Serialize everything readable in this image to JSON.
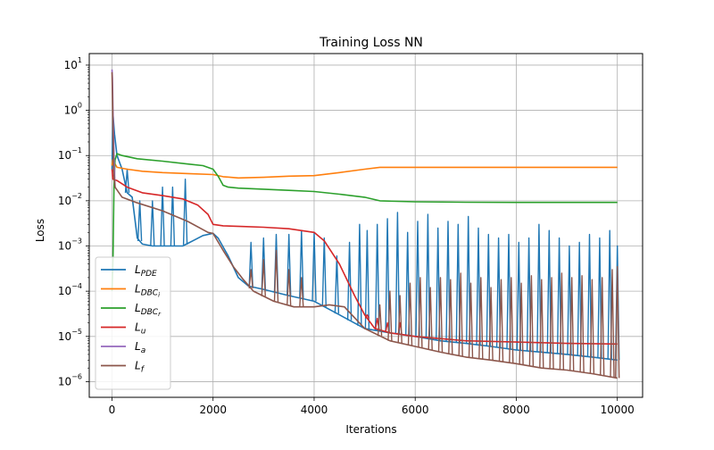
{
  "chart_data": {
    "type": "line",
    "title": "Training Loss NN",
    "xlabel": "Iterations",
    "ylabel": "Loss",
    "xlim": [
      -450,
      10500
    ],
    "ylim": [
      4.5e-07,
      18
    ],
    "yscale": "log",
    "grid": true,
    "legend_position": "lower-left",
    "x_ticks": [
      {
        "value": 0,
        "label": "0"
      },
      {
        "value": 2000,
        "label": "2000"
      },
      {
        "value": 4000,
        "label": "4000"
      },
      {
        "value": 6000,
        "label": "6000"
      },
      {
        "value": 8000,
        "label": "8000"
      },
      {
        "value": 10000,
        "label": "10000"
      }
    ],
    "y_ticks": [
      {
        "value": 1e-06,
        "base": "10",
        "exp": "−6"
      },
      {
        "value": 1e-05,
        "base": "10",
        "exp": "−5"
      },
      {
        "value": 0.0001,
        "base": "10",
        "exp": "−4"
      },
      {
        "value": 0.001,
        "base": "10",
        "exp": "−3"
      },
      {
        "value": 0.01,
        "base": "10",
        "exp": "−2"
      },
      {
        "value": 0.1,
        "base": "10",
        "exp": "−1"
      },
      {
        "value": 1,
        "base": "10",
        "exp": "0"
      },
      {
        "value": 10,
        "base": "10",
        "exp": "1"
      }
    ],
    "series": [
      {
        "name": "L_PDE",
        "main": "L",
        "sub": "PDE",
        "subsub": "",
        "color": "#1f77b4",
        "points": [
          [
            0,
            0.05
          ],
          [
            20,
            0.8
          ],
          [
            50,
            0.3
          ],
          [
            100,
            0.1
          ],
          [
            200,
            0.05
          ],
          [
            300,
            0.015
          ],
          [
            400,
            0.012
          ],
          [
            500,
            0.0015
          ],
          [
            600,
            0.0011
          ],
          [
            800,
            0.001
          ],
          [
            1000,
            0.001
          ],
          [
            1200,
            0.001
          ],
          [
            1400,
            0.001
          ],
          [
            1600,
            0.0013
          ],
          [
            1800,
            0.0017
          ],
          [
            2000,
            0.0019
          ],
          [
            2100,
            0.0015
          ],
          [
            2300,
            0.0006
          ],
          [
            2500,
            0.0002
          ],
          [
            2700,
            0.00013
          ],
          [
            3000,
            0.00011
          ],
          [
            3500,
            8e-05
          ],
          [
            4000,
            6e-05
          ],
          [
            4500,
            3e-05
          ],
          [
            5000,
            1.5e-05
          ],
          [
            5500,
            1.2e-05
          ],
          [
            6000,
            1e-05
          ],
          [
            6500,
            8e-06
          ],
          [
            7000,
            7e-06
          ],
          [
            7500,
            6e-06
          ],
          [
            8000,
            5e-06
          ],
          [
            8500,
            4.5e-06
          ],
          [
            9000,
            4e-06
          ],
          [
            9500,
            3.5e-06
          ],
          [
            10000,
            3e-06
          ]
        ],
        "spikes": [
          [
            300,
            0.05
          ],
          [
            550,
            0.01
          ],
          [
            800,
            0.01
          ],
          [
            1000,
            0.02
          ],
          [
            1200,
            0.02
          ],
          [
            1450,
            0.03
          ],
          [
            2750,
            0.0012
          ],
          [
            3000,
            0.0015
          ],
          [
            3250,
            0.0018
          ],
          [
            3500,
            0.0018
          ],
          [
            3750,
            0.0022
          ],
          [
            4000,
            0.002
          ],
          [
            4200,
            0.0015
          ],
          [
            4450,
            0.0006
          ],
          [
            4700,
            0.0012
          ],
          [
            4900,
            0.003
          ],
          [
            5050,
            0.0022
          ],
          [
            5250,
            0.003
          ],
          [
            5450,
            0.004
          ],
          [
            5650,
            0.0055
          ],
          [
            5850,
            0.002
          ],
          [
            6050,
            0.0035
          ],
          [
            6250,
            0.005
          ],
          [
            6450,
            0.0025
          ],
          [
            6650,
            0.0035
          ],
          [
            6850,
            0.003
          ],
          [
            7050,
            0.0045
          ],
          [
            7250,
            0.0025
          ],
          [
            7450,
            0.0018
          ],
          [
            7650,
            0.0015
          ],
          [
            7850,
            0.0018
          ],
          [
            8050,
            0.0012
          ],
          [
            8250,
            0.0015
          ],
          [
            8450,
            0.003
          ],
          [
            8650,
            0.0022
          ],
          [
            8850,
            0.0015
          ],
          [
            9050,
            0.001
          ],
          [
            9250,
            0.0012
          ],
          [
            9450,
            0.0018
          ],
          [
            9650,
            0.0015
          ],
          [
            9850,
            0.0022
          ],
          [
            10000,
            0.001
          ]
        ]
      },
      {
        "name": "L_DBC_i",
        "main": "L",
        "sub": "DBC",
        "subsub": "i",
        "color": "#ff7f0e",
        "points": [
          [
            0,
            0.06
          ],
          [
            15,
            0.08
          ],
          [
            100,
            0.055
          ],
          [
            300,
            0.05
          ],
          [
            600,
            0.045
          ],
          [
            1000,
            0.042
          ],
          [
            1500,
            0.04
          ],
          [
            2000,
            0.038
          ],
          [
            2200,
            0.034
          ],
          [
            2500,
            0.032
          ],
          [
            3000,
            0.033
          ],
          [
            3500,
            0.035
          ],
          [
            4000,
            0.036
          ],
          [
            4500,
            0.042
          ],
          [
            5000,
            0.05
          ],
          [
            5300,
            0.055
          ],
          [
            6000,
            0.055
          ],
          [
            7000,
            0.055
          ],
          [
            8000,
            0.055
          ],
          [
            9000,
            0.055
          ],
          [
            10000,
            0.055
          ]
        ],
        "spikes": []
      },
      {
        "name": "L_DBC_r",
        "main": "L",
        "sub": "DBC",
        "subsub": "r",
        "color": "#2ca02c",
        "points": [
          [
            0,
            0.0001
          ],
          [
            20,
            0.0005
          ],
          [
            40,
            0.02
          ],
          [
            60,
            0.08
          ],
          [
            100,
            0.11
          ],
          [
            200,
            0.1
          ],
          [
            500,
            0.085
          ],
          [
            1000,
            0.075
          ],
          [
            1500,
            0.065
          ],
          [
            1800,
            0.06
          ],
          [
            2000,
            0.05
          ],
          [
            2100,
            0.035
          ],
          [
            2200,
            0.022
          ],
          [
            2300,
            0.02
          ],
          [
            2500,
            0.019
          ],
          [
            3000,
            0.018
          ],
          [
            3500,
            0.017
          ],
          [
            4000,
            0.016
          ],
          [
            4500,
            0.014
          ],
          [
            5000,
            0.012
          ],
          [
            5300,
            0.01
          ],
          [
            6000,
            0.0095
          ],
          [
            7000,
            0.0093
          ],
          [
            8000,
            0.0092
          ],
          [
            9000,
            0.0092
          ],
          [
            10000,
            0.0092
          ]
        ],
        "spikes": []
      },
      {
        "name": "L_u",
        "main": "L",
        "sub": "u",
        "subsub": "",
        "color": "#d62728",
        "points": [
          [
            0,
            0.05
          ],
          [
            20,
            0.03
          ],
          [
            100,
            0.028
          ],
          [
            300,
            0.02
          ],
          [
            600,
            0.015
          ],
          [
            1000,
            0.013
          ],
          [
            1400,
            0.011
          ],
          [
            1700,
            0.008
          ],
          [
            1900,
            0.005
          ],
          [
            2000,
            0.003
          ],
          [
            2200,
            0.0028
          ],
          [
            2600,
            0.0027
          ],
          [
            3000,
            0.0026
          ],
          [
            3500,
            0.0024
          ],
          [
            4000,
            0.002
          ],
          [
            4200,
            0.0013
          ],
          [
            4500,
            0.0004
          ],
          [
            4800,
            8e-05
          ],
          [
            5000,
            3e-05
          ],
          [
            5200,
            1.5e-05
          ],
          [
            5500,
            1.2e-05
          ],
          [
            6000,
            1e-05
          ],
          [
            7000,
            8e-06
          ],
          [
            8000,
            7.5e-06
          ],
          [
            9000,
            7e-06
          ],
          [
            10000,
            6.8e-06
          ]
        ],
        "spikes": [
          [
            5050,
            3e-05
          ],
          [
            5250,
            2.5e-05
          ],
          [
            5450,
            2e-05
          ],
          [
            5700,
            2e-05
          ]
        ]
      },
      {
        "name": "L_a",
        "main": "L",
        "sub": "a",
        "subsub": "",
        "color": "#9467bd",
        "points": [
          [
            0,
            8
          ],
          [
            10,
            5
          ],
          [
            20,
            1
          ],
          [
            40,
            0.1
          ],
          [
            60,
            0.02
          ]
        ],
        "spikes": []
      },
      {
        "name": "L_f",
        "main": "L",
        "sub": "f",
        "subsub": "",
        "color": "#8c564b",
        "points": [
          [
            0,
            7
          ],
          [
            15,
            1
          ],
          [
            30,
            0.05
          ],
          [
            60,
            0.02
          ],
          [
            200,
            0.012
          ],
          [
            500,
            0.009
          ],
          [
            1000,
            0.006
          ],
          [
            1500,
            0.0035
          ],
          [
            1900,
            0.002
          ],
          [
            2000,
            0.0019
          ],
          [
            2200,
            0.0008
          ],
          [
            2400,
            0.00035
          ],
          [
            2600,
            0.00018
          ],
          [
            2800,
            0.0001
          ],
          [
            3200,
            6e-05
          ],
          [
            3600,
            4.5e-05
          ],
          [
            4000,
            4.5e-05
          ],
          [
            4300,
            5e-05
          ],
          [
            4600,
            4.5e-05
          ],
          [
            5000,
            1.5e-05
          ],
          [
            5500,
            8e-06
          ],
          [
            6000,
            6e-06
          ],
          [
            6500,
            4.5e-06
          ],
          [
            7000,
            3.5e-06
          ],
          [
            7500,
            3e-06
          ],
          [
            8000,
            2.5e-06
          ],
          [
            8500,
            2e-06
          ],
          [
            9000,
            1.8e-06
          ],
          [
            9500,
            1.5e-06
          ],
          [
            10000,
            1.2e-06
          ]
        ],
        "spikes": [
          [
            2750,
            0.0003
          ],
          [
            3000,
            0.0005
          ],
          [
            3250,
            0.0008
          ],
          [
            3500,
            0.0003
          ],
          [
            3750,
            0.0002
          ],
          [
            5300,
            5e-05
          ],
          [
            5500,
            0.0001
          ],
          [
            5700,
            8e-05
          ],
          [
            5900,
            0.00015
          ],
          [
            6100,
            0.0002
          ],
          [
            6300,
            0.00012
          ],
          [
            6500,
            0.0002
          ],
          [
            6700,
            0.00018
          ],
          [
            6900,
            0.00025
          ],
          [
            7100,
            0.00015
          ],
          [
            7300,
            0.0002
          ],
          [
            7500,
            0.00012
          ],
          [
            7700,
            0.00018
          ],
          [
            7900,
            0.0002
          ],
          [
            8100,
            0.00015
          ],
          [
            8300,
            0.00022
          ],
          [
            8500,
            0.00018
          ],
          [
            8700,
            0.0002
          ],
          [
            8900,
            0.00025
          ],
          [
            9100,
            0.0002
          ],
          [
            9300,
            0.00022
          ],
          [
            9500,
            0.00018
          ],
          [
            9700,
            0.0002
          ],
          [
            9900,
            0.0003
          ],
          [
            10000,
            0.00035
          ]
        ]
      }
    ]
  }
}
